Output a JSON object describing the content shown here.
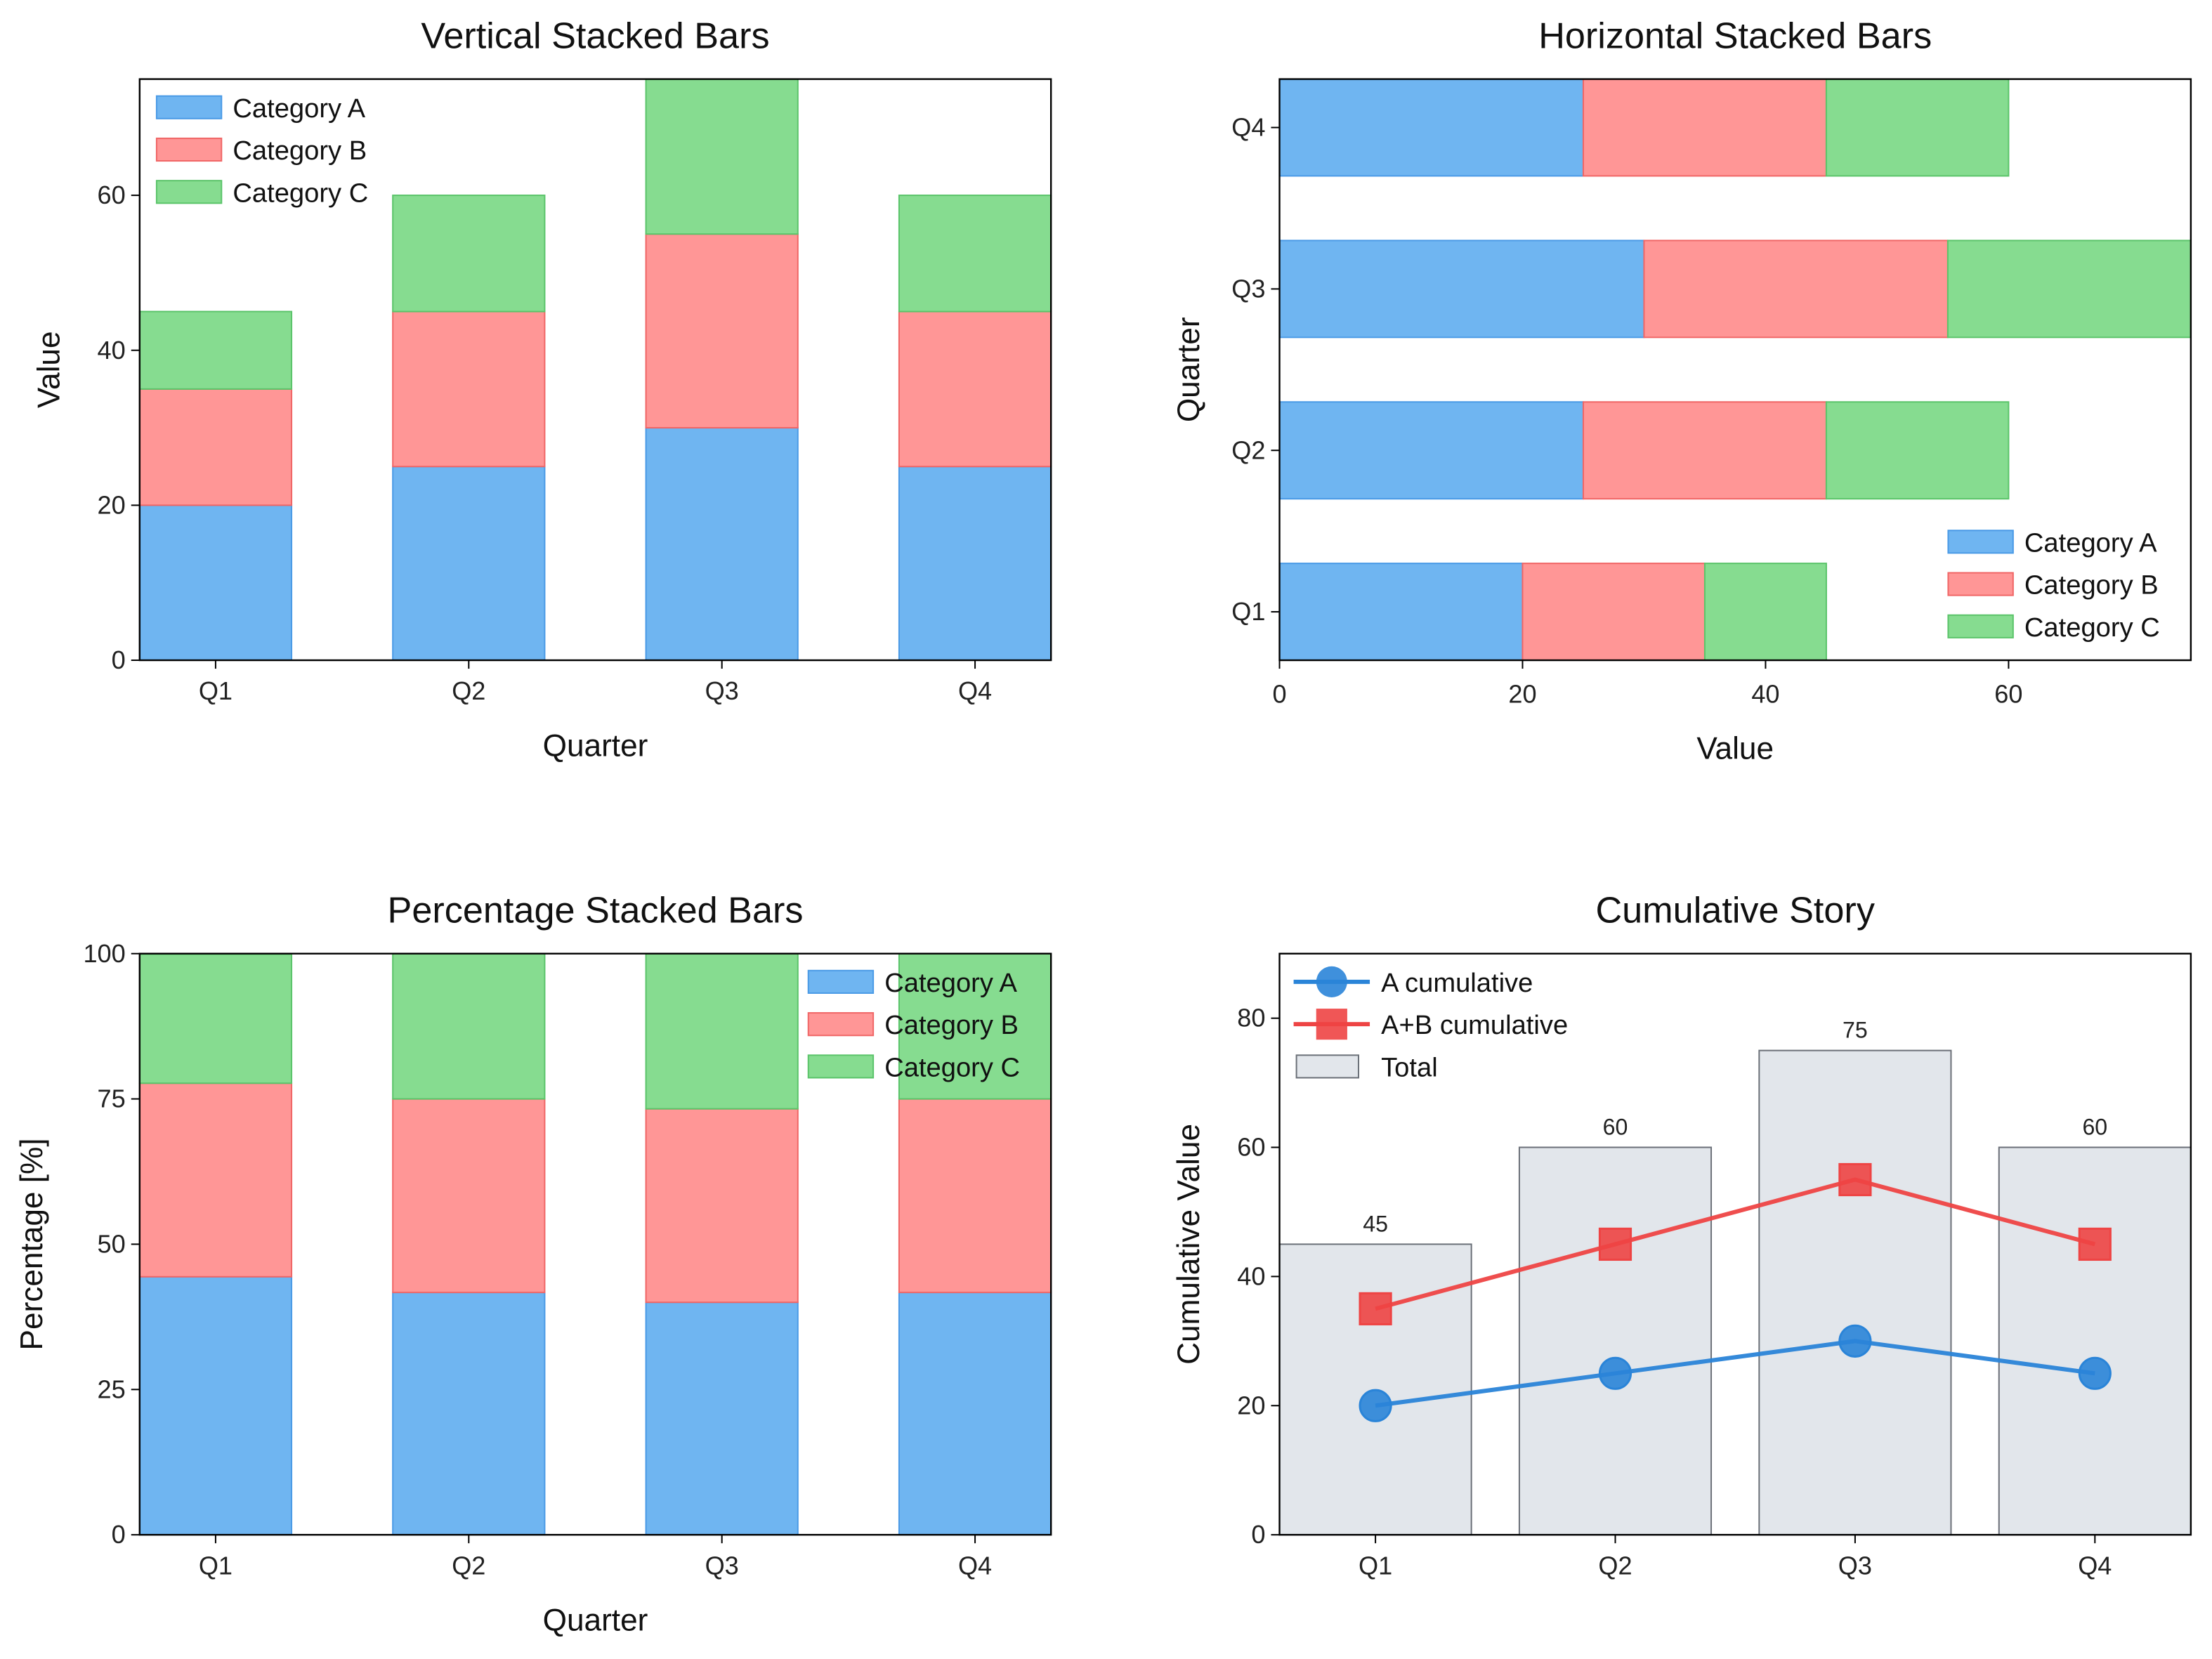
{
  "colors": {
    "Category A": {
      "fill": "#6fb5f1",
      "edge": "#4a9ae6"
    },
    "Category B": {
      "fill": "#ff9696",
      "edge": "#f06666"
    },
    "Category C": {
      "fill": "#86dc90",
      "edge": "#5bc46a"
    },
    "A cumulative": "#2a84d8",
    "A+B cumulative": "#ee4444",
    "Total": {
      "fill": "#e2e6eb",
      "edge": "#6b7078"
    }
  },
  "chart_data": [
    {
      "type": "bar",
      "stacked": true,
      "orientation": "vertical",
      "title": "Vertical Stacked Bars",
      "xlabel": "Quarter",
      "ylabel": "Value",
      "categories": [
        "Q1",
        "Q2",
        "Q3",
        "Q4"
      ],
      "series": [
        {
          "name": "Category A",
          "values": [
            20,
            25,
            30,
            25
          ]
        },
        {
          "name": "Category B",
          "values": [
            15,
            20,
            25,
            20
          ]
        },
        {
          "name": "Category C",
          "values": [
            10,
            15,
            20,
            15
          ]
        }
      ],
      "ylim": [
        0,
        75
      ],
      "yticks": [
        0,
        20,
        40,
        60
      ],
      "legend": "upper-left",
      "grid": false
    },
    {
      "type": "bar",
      "stacked": true,
      "orientation": "horizontal",
      "title": "Horizontal Stacked Bars",
      "xlabel": "Value",
      "ylabel": "Quarter",
      "categories": [
        "Q1",
        "Q2",
        "Q3",
        "Q4"
      ],
      "series": [
        {
          "name": "Category A",
          "values": [
            20,
            25,
            30,
            25
          ]
        },
        {
          "name": "Category B",
          "values": [
            15,
            20,
            25,
            20
          ]
        },
        {
          "name": "Category C",
          "values": [
            10,
            15,
            20,
            15
          ]
        }
      ],
      "xlim": [
        0,
        75
      ],
      "xticks": [
        0,
        20,
        40,
        60
      ],
      "legend": "lower-right",
      "grid": false
    },
    {
      "type": "bar",
      "stacked": true,
      "orientation": "vertical",
      "title": "Percentage Stacked Bars",
      "xlabel": "Quarter",
      "ylabel": "Percentage [%]",
      "categories": [
        "Q1",
        "Q2",
        "Q3",
        "Q4"
      ],
      "series": [
        {
          "name": "Category A",
          "values": [
            44.4,
            41.7,
            40.0,
            41.7
          ]
        },
        {
          "name": "Category B",
          "values": [
            33.3,
            33.3,
            33.3,
            33.3
          ]
        },
        {
          "name": "Category C",
          "values": [
            22.2,
            25.0,
            26.7,
            25.0
          ]
        }
      ],
      "ylim": [
        0,
        100
      ],
      "yticks": [
        0,
        25,
        50,
        75,
        100
      ],
      "legend": "upper-right",
      "grid": false
    },
    {
      "type": "line",
      "title": "Cumulative Story",
      "xlabel": "",
      "ylabel": "Cumulative Value",
      "categories": [
        "Q1",
        "Q2",
        "Q3",
        "Q4"
      ],
      "bars": {
        "name": "Total",
        "values": [
          45,
          60,
          75,
          60
        ],
        "labels": [
          "45",
          "60",
          "75",
          "60"
        ]
      },
      "series": [
        {
          "name": "A cumulative",
          "values": [
            20,
            25,
            30,
            25
          ],
          "marker": "circle"
        },
        {
          "name": "A+B cumulative",
          "values": [
            35,
            45,
            55,
            45
          ],
          "marker": "square"
        }
      ],
      "ylim": [
        0,
        90
      ],
      "yticks": [
        0,
        20,
        40,
        60,
        80
      ],
      "legend": "upper-left",
      "grid": false
    }
  ]
}
